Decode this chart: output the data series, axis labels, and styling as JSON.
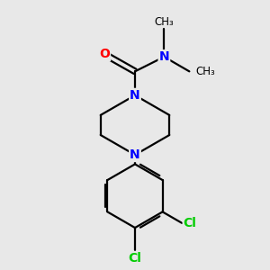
{
  "background_color": "#e8e8e8",
  "bond_color": "#000000",
  "N_color": "#0000ff",
  "O_color": "#ff0000",
  "Cl_color": "#00cc00",
  "line_width": 1.6,
  "figsize": [
    3.0,
    3.0
  ],
  "dpi": 100,
  "xlim": [
    0,
    10
  ],
  "ylim": [
    0,
    10
  ]
}
